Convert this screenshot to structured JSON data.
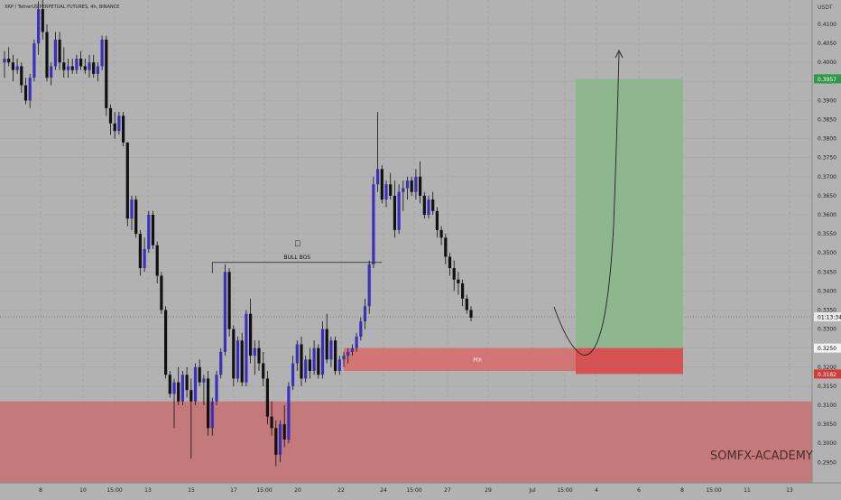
{
  "header": {
    "symbol_line": "XRP / TetherUS PERPETUAL FUTURES, 4h, BINANCE"
  },
  "price_axis": {
    "currency": "USDT",
    "ticks": [
      "0.4100",
      "0.4050",
      "0.4000",
      "0.3950",
      "0.3900",
      "0.3850",
      "0.3800",
      "0.3750",
      "0.3700",
      "0.3650",
      "0.3600",
      "0.3550",
      "0.3500",
      "0.3450",
      "0.3400",
      "0.3350",
      "0.3300",
      "0.3250",
      "0.3200",
      "0.3150",
      "0.3100",
      "0.3050",
      "0.3000",
      "0.2950"
    ],
    "badges": {
      "target": "0.3957",
      "countdown": "01:13:34",
      "entry": "0.3250",
      "stop": "0.3182"
    }
  },
  "time_axis": {
    "ticks": [
      "8",
      "10",
      "15:00",
      "13",
      "15",
      "17",
      "15:00",
      "20",
      "22",
      "24",
      "15:00",
      "27",
      "29",
      "Jul",
      "15:00",
      "4",
      "6",
      "8",
      "15:00",
      "11",
      "13"
    ]
  },
  "annotations": {
    "bos_label": "BULL BOS",
    "poi_label": "POI",
    "watermark": "SOMFX-ACADEMY"
  },
  "colors": {
    "background": "#b2b2b2",
    "bull_candle": "#3d2fbd",
    "bear_candle": "#111111",
    "supply_zone": "#c47a7a",
    "poi_zone": "#d96a6a",
    "target_zone": "#8fb78f",
    "stop_zone": "#d65353",
    "target_badge": "#2e9a4a",
    "stop_badge": "#d43a3a"
  },
  "chart_data": {
    "type": "candlestick",
    "title": "XRP / TetherUS PERPETUAL FUTURES, 4h, BINANCE",
    "y_unit": "USDT",
    "ylim": [
      0.2925,
      0.4175
    ],
    "grid": true,
    "candles_ohlc": [
      [
        0.4,
        0.403,
        0.396,
        0.401
      ],
      [
        0.401,
        0.404,
        0.399,
        0.4
      ],
      [
        0.4,
        0.402,
        0.395,
        0.398
      ],
      [
        0.398,
        0.401,
        0.397,
        0.399
      ],
      [
        0.399,
        0.4,
        0.392,
        0.394
      ],
      [
        0.394,
        0.396,
        0.389,
        0.39
      ],
      [
        0.39,
        0.397,
        0.388,
        0.396
      ],
      [
        0.396,
        0.406,
        0.395,
        0.405
      ],
      [
        0.405,
        0.416,
        0.402,
        0.414
      ],
      [
        0.414,
        0.417,
        0.406,
        0.408
      ],
      [
        0.408,
        0.41,
        0.395,
        0.396
      ],
      [
        0.396,
        0.4,
        0.394,
        0.399
      ],
      [
        0.399,
        0.408,
        0.398,
        0.406
      ],
      [
        0.406,
        0.408,
        0.398,
        0.4
      ],
      [
        0.4,
        0.404,
        0.396,
        0.398
      ],
      [
        0.398,
        0.401,
        0.396,
        0.399
      ],
      [
        0.399,
        0.401,
        0.397,
        0.398
      ],
      [
        0.398,
        0.402,
        0.397,
        0.401
      ],
      [
        0.401,
        0.403,
        0.398,
        0.399
      ],
      [
        0.399,
        0.401,
        0.397,
        0.398
      ],
      [
        0.398,
        0.402,
        0.396,
        0.4
      ],
      [
        0.4,
        0.402,
        0.396,
        0.397
      ],
      [
        0.397,
        0.4,
        0.395,
        0.399
      ],
      [
        0.399,
        0.407,
        0.398,
        0.406
      ],
      [
        0.406,
        0.407,
        0.386,
        0.388
      ],
      [
        0.388,
        0.389,
        0.381,
        0.384
      ],
      [
        0.384,
        0.387,
        0.38,
        0.382
      ],
      [
        0.382,
        0.387,
        0.381,
        0.386
      ],
      [
        0.386,
        0.387,
        0.378,
        0.379
      ],
      [
        0.379,
        0.379,
        0.357,
        0.359
      ],
      [
        0.359,
        0.365,
        0.356,
        0.364
      ],
      [
        0.364,
        0.365,
        0.354,
        0.355
      ],
      [
        0.355,
        0.356,
        0.344,
        0.346
      ],
      [
        0.346,
        0.354,
        0.345,
        0.351
      ],
      [
        0.351,
        0.361,
        0.35,
        0.36
      ],
      [
        0.36,
        0.361,
        0.351,
        0.352
      ],
      [
        0.352,
        0.353,
        0.342,
        0.344
      ],
      [
        0.344,
        0.345,
        0.334,
        0.335
      ],
      [
        0.335,
        0.336,
        0.317,
        0.318
      ],
      [
        0.318,
        0.319,
        0.312,
        0.313
      ],
      [
        0.313,
        0.317,
        0.304,
        0.316
      ],
      [
        0.316,
        0.32,
        0.31,
        0.311
      ],
      [
        0.311,
        0.319,
        0.31,
        0.318
      ],
      [
        0.318,
        0.32,
        0.312,
        0.314
      ],
      [
        0.314,
        0.317,
        0.296,
        0.311
      ],
      [
        0.311,
        0.321,
        0.31,
        0.32
      ],
      [
        0.32,
        0.322,
        0.315,
        0.316
      ],
      [
        0.316,
        0.318,
        0.31,
        0.317
      ],
      [
        0.317,
        0.319,
        0.302,
        0.304
      ],
      [
        0.304,
        0.312,
        0.302,
        0.311
      ],
      [
        0.311,
        0.319,
        0.31,
        0.318
      ],
      [
        0.318,
        0.325,
        0.317,
        0.324
      ],
      [
        0.324,
        0.347,
        0.323,
        0.345
      ],
      [
        0.345,
        0.346,
        0.328,
        0.33
      ],
      [
        0.33,
        0.331,
        0.315,
        0.317
      ],
      [
        0.317,
        0.328,
        0.316,
        0.327
      ],
      [
        0.327,
        0.329,
        0.315,
        0.316
      ],
      [
        0.316,
        0.335,
        0.315,
        0.334
      ],
      [
        0.334,
        0.338,
        0.321,
        0.323
      ],
      [
        0.323,
        0.327,
        0.318,
        0.325
      ],
      [
        0.325,
        0.327,
        0.319,
        0.321
      ],
      [
        0.321,
        0.324,
        0.315,
        0.317
      ],
      [
        0.317,
        0.319,
        0.305,
        0.307
      ],
      [
        0.307,
        0.311,
        0.302,
        0.304
      ],
      [
        0.304,
        0.306,
        0.294,
        0.297
      ],
      [
        0.297,
        0.306,
        0.295,
        0.305
      ],
      [
        0.305,
        0.31,
        0.299,
        0.301
      ],
      [
        0.301,
        0.316,
        0.3,
        0.315
      ],
      [
        0.315,
        0.323,
        0.314,
        0.321
      ],
      [
        0.321,
        0.327,
        0.319,
        0.326
      ],
      [
        0.326,
        0.328,
        0.315,
        0.317
      ],
      [
        0.317,
        0.323,
        0.316,
        0.322
      ],
      [
        0.322,
        0.325,
        0.317,
        0.319
      ],
      [
        0.319,
        0.327,
        0.318,
        0.325
      ],
      [
        0.325,
        0.326,
        0.317,
        0.318
      ],
      [
        0.318,
        0.332,
        0.317,
        0.33
      ],
      [
        0.33,
        0.334,
        0.321,
        0.322
      ],
      [
        0.322,
        0.328,
        0.32,
        0.327
      ],
      [
        0.327,
        0.328,
        0.318,
        0.319
      ],
      [
        0.319,
        0.323,
        0.318,
        0.322
      ],
      [
        0.322,
        0.324,
        0.32,
        0.323
      ],
      [
        0.323,
        0.325,
        0.321,
        0.324
      ],
      [
        0.324,
        0.326,
        0.323,
        0.325
      ],
      [
        0.325,
        0.329,
        0.324,
        0.328
      ],
      [
        0.328,
        0.333,
        0.327,
        0.332
      ],
      [
        0.332,
        0.338,
        0.33,
        0.336
      ],
      [
        0.336,
        0.348,
        0.334,
        0.347
      ],
      [
        0.347,
        0.37,
        0.346,
        0.368
      ],
      [
        0.368,
        0.387,
        0.366,
        0.372
      ],
      [
        0.372,
        0.373,
        0.363,
        0.364
      ],
      [
        0.364,
        0.369,
        0.362,
        0.368
      ],
      [
        0.368,
        0.371,
        0.364,
        0.365
      ],
      [
        0.365,
        0.369,
        0.354,
        0.356
      ],
      [
        0.356,
        0.368,
        0.355,
        0.366
      ],
      [
        0.366,
        0.369,
        0.361,
        0.367
      ],
      [
        0.367,
        0.37,
        0.364,
        0.369
      ],
      [
        0.369,
        0.37,
        0.365,
        0.366
      ],
      [
        0.366,
        0.372,
        0.364,
        0.37
      ],
      [
        0.37,
        0.374,
        0.363,
        0.365
      ],
      [
        0.365,
        0.366,
        0.359,
        0.36
      ],
      [
        0.36,
        0.365,
        0.359,
        0.364
      ],
      [
        0.364,
        0.366,
        0.36,
        0.361
      ],
      [
        0.361,
        0.362,
        0.354,
        0.356
      ],
      [
        0.356,
        0.357,
        0.352,
        0.354
      ],
      [
        0.354,
        0.355,
        0.347,
        0.349
      ],
      [
        0.349,
        0.35,
        0.344,
        0.346
      ],
      [
        0.346,
        0.348,
        0.34,
        0.343
      ],
      [
        0.343,
        0.345,
        0.339,
        0.342
      ],
      [
        0.342,
        0.343,
        0.336,
        0.338
      ],
      [
        0.338,
        0.339,
        0.334,
        0.335
      ],
      [
        0.335,
        0.336,
        0.332,
        0.333
      ]
    ],
    "bull_bos": {
      "price": 0.3475
    },
    "poi_zone": {
      "low": 0.319,
      "high": 0.325
    },
    "supply_zone": {
      "low": 0.2925,
      "high": 0.311
    },
    "long_position": {
      "entry": 0.325,
      "target": 0.3957,
      "stop": 0.3182
    },
    "current_price_line": 0.3332
  }
}
